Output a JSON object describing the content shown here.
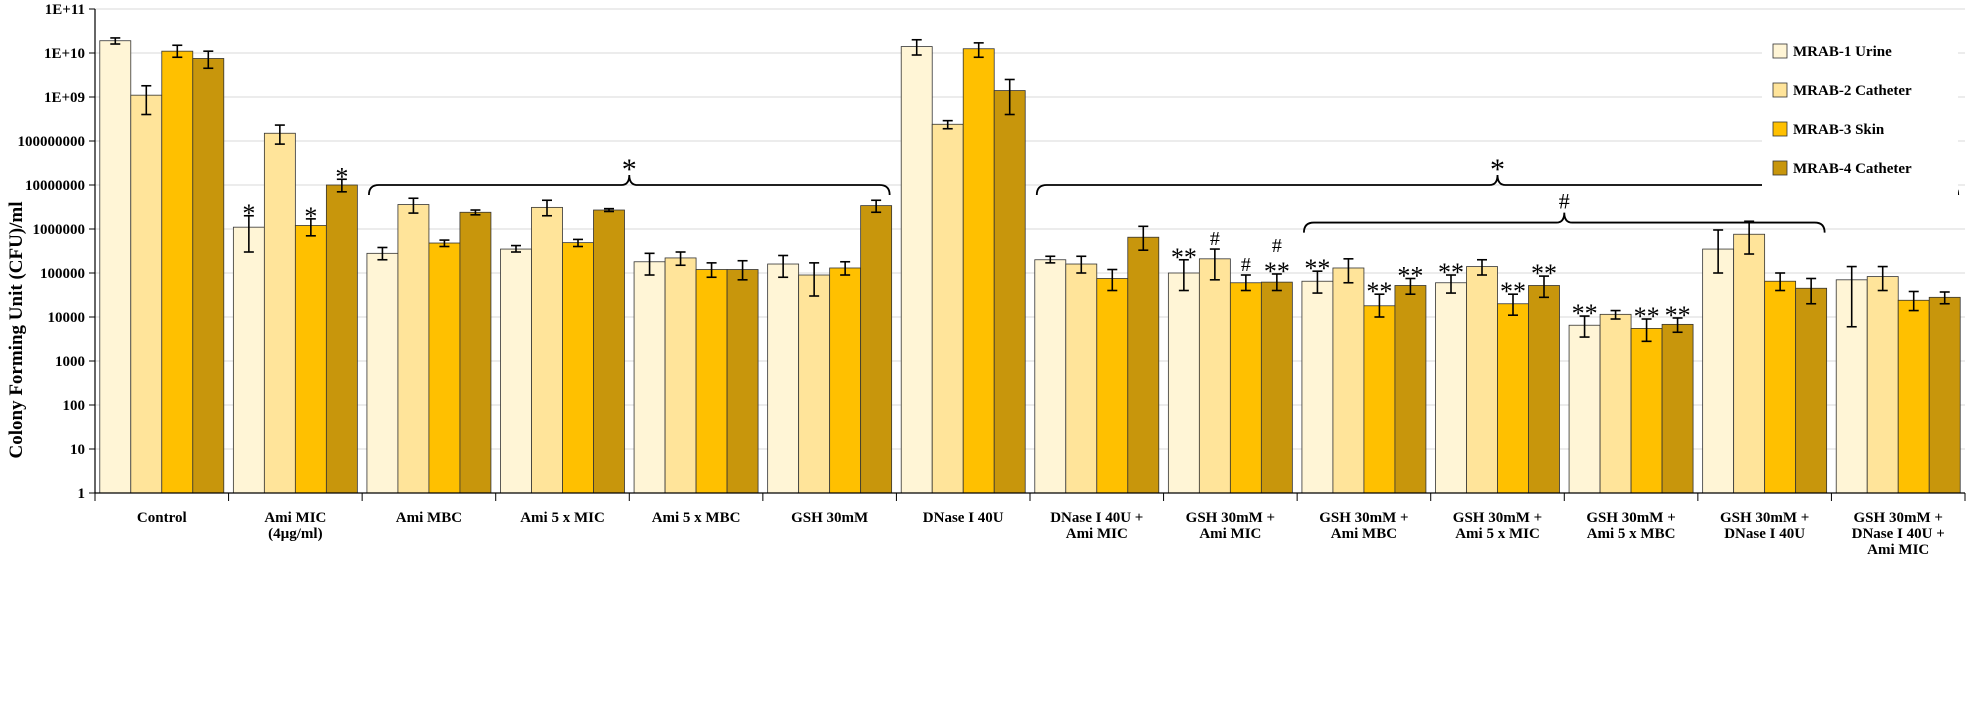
{
  "chart_data": {
    "type": "bar",
    "yscale": "log",
    "ylabel": "Colony Forming Unit (CFU)/ml",
    "ylim": [
      1,
      100000000000
    ],
    "yticks": [
      "1",
      "10",
      "100",
      "1000",
      "10000",
      "100000",
      "1000000",
      "10000000",
      "100000000",
      "1E+09",
      "1E+10",
      "1E+11"
    ],
    "grid": true,
    "legend_position": "top-right",
    "categories": [
      [
        "Control"
      ],
      [
        "Ami MIC",
        "(4µg/ml)"
      ],
      [
        "Ami MBC"
      ],
      [
        "Ami 5 x MIC"
      ],
      [
        "Ami 5 x MBC"
      ],
      [
        "GSH 30mM"
      ],
      [
        "DNase I 40U"
      ],
      [
        "DNase I 40U +",
        "Ami MIC"
      ],
      [
        "GSH 30mM +",
        "Ami MIC"
      ],
      [
        "GSH 30mM +",
        "Ami MBC"
      ],
      [
        "GSH 30mM +",
        "Ami 5 x MIC"
      ],
      [
        "GSH 30mM +",
        "Ami 5 x MBC"
      ],
      [
        "GSH 30mM +",
        "DNase I 40U"
      ],
      [
        "GSH 30mM +",
        "DNase I 40U +",
        "Ami MIC"
      ]
    ],
    "series": [
      {
        "name": "MRAB-1 Urine",
        "color": "#FFF5D6",
        "values": [
          19000000000,
          1100000,
          280000,
          350000,
          180000,
          160000,
          14000000000,
          200000,
          100000,
          65000,
          60000,
          6500,
          350000,
          70000
        ],
        "errors": [
          [
            16000000000,
            22000000000
          ],
          [
            300000,
            2000000
          ],
          [
            200000,
            380000
          ],
          [
            300000,
            420000
          ],
          [
            90000,
            280000
          ],
          [
            80000,
            250000
          ],
          [
            9000000000,
            20000000000
          ],
          [
            170000,
            240000
          ],
          [
            40000,
            200000
          ],
          [
            35000,
            110000
          ],
          [
            35000,
            90000
          ],
          [
            3500,
            10500
          ],
          [
            100000,
            950000
          ],
          [
            6000,
            140000
          ]
        ]
      },
      {
        "name": "MRAB-2 Catheter",
        "color": "#FFE49A",
        "values": [
          1100000000,
          150000000,
          3600000,
          3100000,
          220000,
          90000,
          240000000,
          160000,
          210000,
          130000,
          140000,
          11500,
          760000,
          83000
        ],
        "errors": [
          [
            400000000,
            1800000000
          ],
          [
            85000000,
            230000000
          ],
          [
            2300000,
            5000000
          ],
          [
            2000000,
            4500000
          ],
          [
            150000,
            300000
          ],
          [
            30000,
            170000
          ],
          [
            190000000,
            290000000
          ],
          [
            100000,
            240000
          ],
          [
            70000,
            350000
          ],
          [
            60000,
            210000
          ],
          [
            90000,
            200000
          ],
          [
            9000,
            14000
          ],
          [
            270000,
            1500000
          ],
          [
            40000,
            140000
          ]
        ]
      },
      {
        "name": "MRAB-3 Skin",
        "color": "#FFC000",
        "values": [
          11000000000,
          1200000,
          480000,
          490000,
          120000,
          130000,
          12500000000,
          75000,
          60000,
          18000,
          20000,
          5500,
          65000,
          24000
        ],
        "errors": [
          [
            8000000000,
            15000000000
          ],
          [
            700000,
            1700000
          ],
          [
            400000,
            560000
          ],
          [
            400000,
            580000
          ],
          [
            80000,
            170000
          ],
          [
            90000,
            180000
          ],
          [
            8000000000,
            17000000000
          ],
          [
            40000,
            120000
          ],
          [
            40000,
            90000
          ],
          [
            10000,
            33000
          ],
          [
            11000,
            33000
          ],
          [
            2800,
            9000
          ],
          [
            40000,
            100000
          ],
          [
            14000,
            38000
          ]
        ]
      },
      {
        "name": "MRAB-4 Catheter",
        "color": "#C8960C",
        "values": [
          7500000000,
          10000000,
          2400000,
          2700000,
          120000,
          3400000,
          1400000000,
          650000,
          62000,
          52000,
          52000,
          6800,
          45000,
          28000
        ],
        "errors": [
          [
            4500000000,
            11000000000
          ],
          [
            7000000,
            13500000
          ],
          [
            2100000,
            2700000
          ],
          [
            2500000,
            2900000
          ],
          [
            70000,
            190000
          ],
          [
            2400000,
            4500000
          ],
          [
            400000000,
            2500000000
          ],
          [
            330000,
            1150000
          ],
          [
            40000,
            95000
          ],
          [
            33000,
            75000
          ],
          [
            28000,
            85000
          ],
          [
            4500,
            9500
          ],
          [
            20000,
            75000
          ],
          [
            20000,
            37000
          ]
        ]
      }
    ],
    "annotations": {
      "bar_marks": [
        {
          "group": 1,
          "series": 0,
          "text": "*"
        },
        {
          "group": 1,
          "series": 2,
          "text": "*"
        },
        {
          "group": 1,
          "series": 3,
          "text": "*"
        },
        {
          "group": 8,
          "series": 0,
          "text": "**"
        },
        {
          "group": 8,
          "series": 1,
          "text": "#"
        },
        {
          "group": 8,
          "series": 2,
          "text": "#"
        },
        {
          "group": 8,
          "series": 3,
          "text": "**"
        },
        {
          "group": 8,
          "series": 3,
          "text": "#"
        },
        {
          "group": 9,
          "series": 0,
          "text": "**"
        },
        {
          "group": 9,
          "series": 2,
          "text": "**"
        },
        {
          "group": 9,
          "series": 3,
          "text": "**"
        },
        {
          "group": 10,
          "series": 0,
          "text": "**"
        },
        {
          "group": 10,
          "series": 2,
          "text": "**"
        },
        {
          "group": 10,
          "series": 3,
          "text": "**"
        },
        {
          "group": 11,
          "series": 0,
          "text": "**"
        },
        {
          "group": 11,
          "series": 2,
          "text": "**"
        },
        {
          "group": 11,
          "series": 3,
          "text": "**"
        }
      ],
      "brackets": [
        {
          "from_group": 2,
          "to_group": 5,
          "level": 10000000,
          "text": "*"
        },
        {
          "from_group": 7,
          "to_group": 13,
          "level": 10000000,
          "text": "*"
        },
        {
          "from_group": 9,
          "to_group": 12,
          "level": 1400000,
          "text": "#"
        }
      ]
    }
  }
}
